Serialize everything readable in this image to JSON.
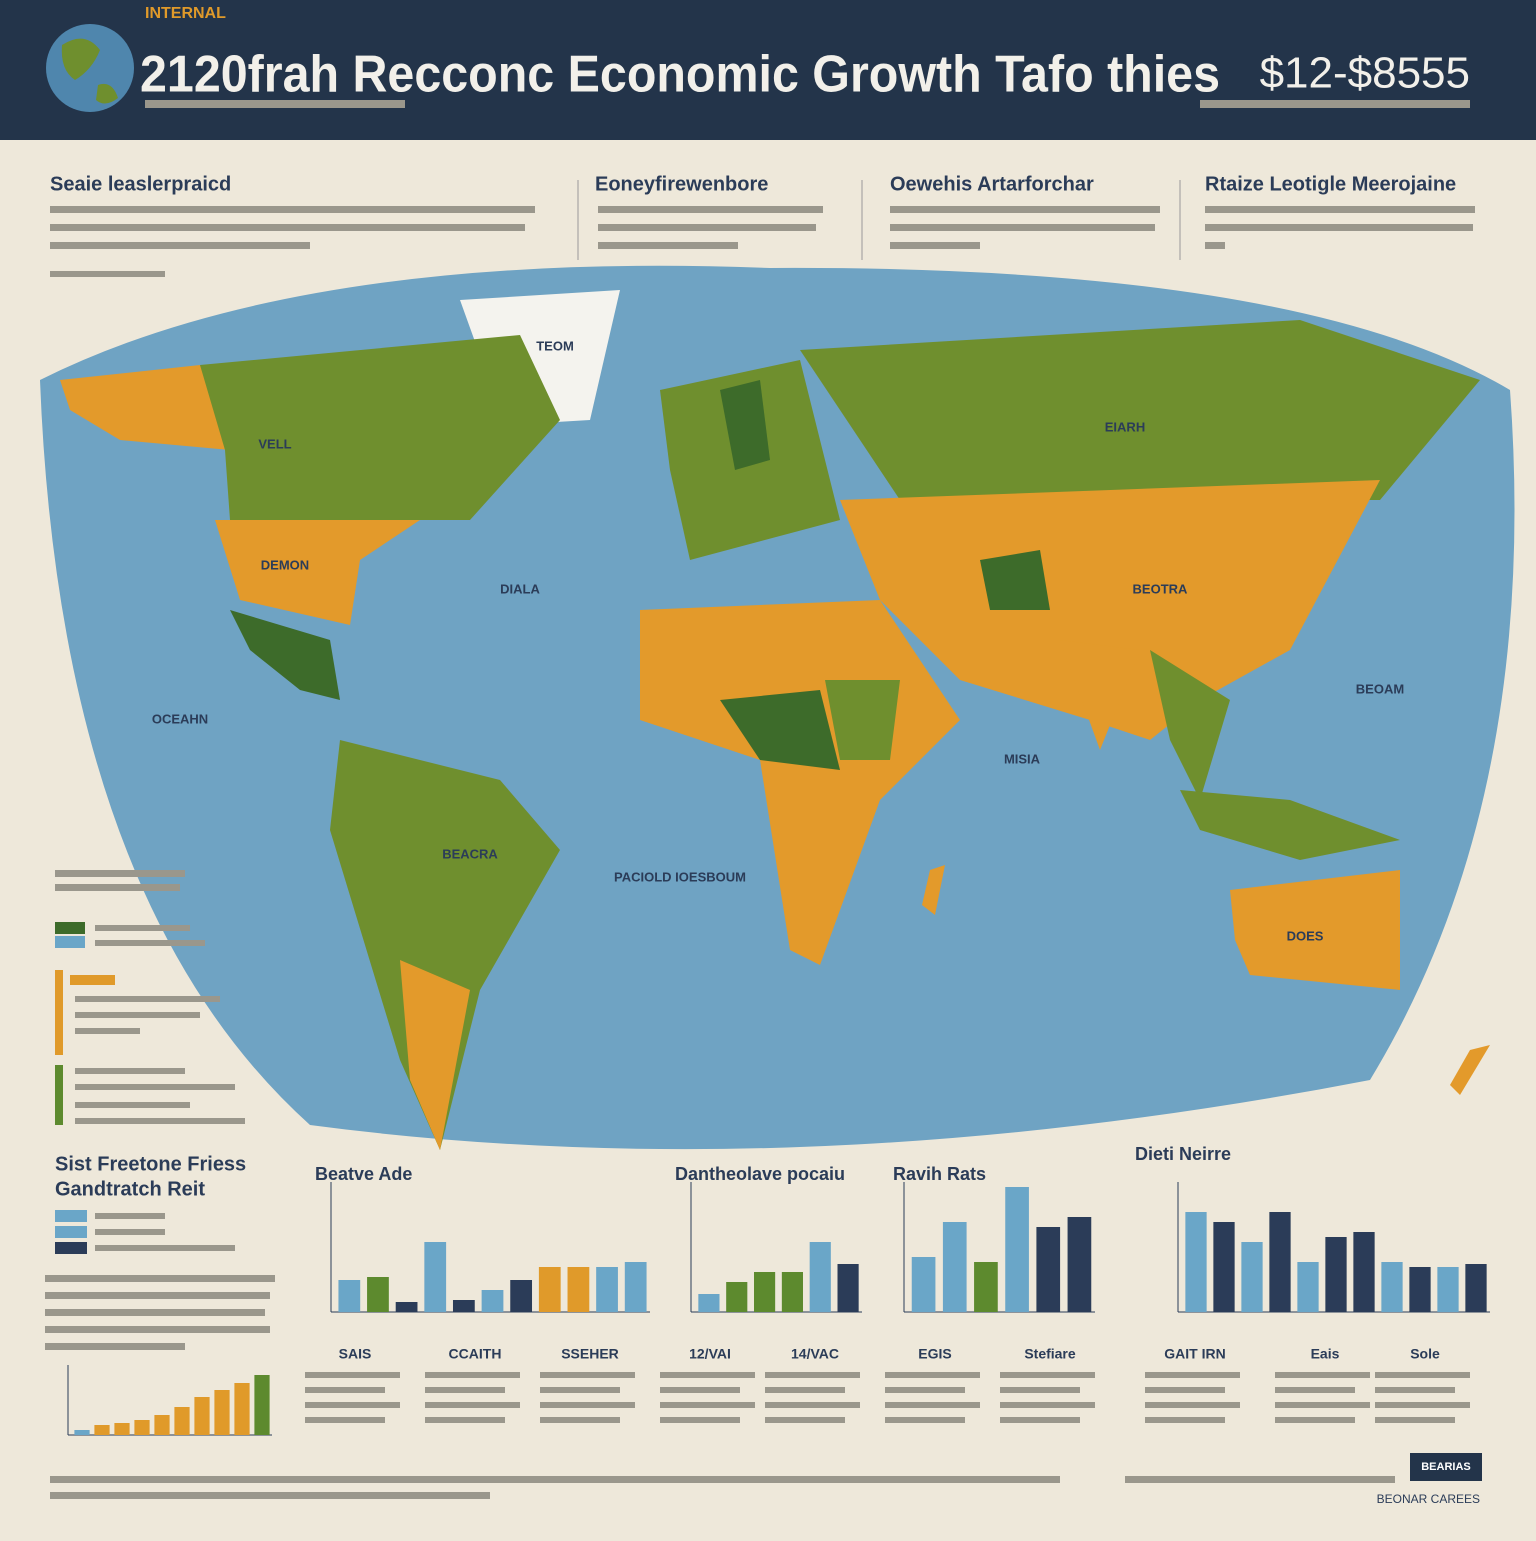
{
  "header": {
    "tag": "INTERNAL",
    "title": "2120frah Recconc Economic Growth Tafo thies",
    "figure": "$12-$8555"
  },
  "sections": [
    "Seaie leaslerpraicd",
    "Eoneyfirewenbore",
    "Oewehis Artarforchar",
    "Rtaize Leotigle Meerojaine"
  ],
  "map_labels": [
    "TEOM",
    "VELL",
    "DEMON",
    "DIALA",
    "BEOTRA",
    "EIARH",
    "OCEAHN",
    "BEOAM",
    "MISIA",
    "BEACRA",
    "PACIOLD IOESBOUM",
    "DOES"
  ],
  "left_panel": {
    "title": "Sist Freetone Friess",
    "subtitle": "Gandtratch Reit"
  },
  "charts": [
    {
      "title": "Beatve Ade",
      "ylim": [
        0,
        130
      ],
      "values": [
        32,
        35,
        10,
        70,
        12,
        22,
        32,
        45,
        45,
        45,
        50
      ],
      "colors": [
        "#6aa6c8",
        "#5d8a2e",
        "#2b3c58",
        "#6aa6c8",
        "#2b3c58",
        "#6aa6c8",
        "#2b3c58",
        "#e09a2a",
        "#e09a2a",
        "#6aa6c8",
        "#6aa6c8"
      ]
    },
    {
      "title": "Dantheolave pocaiu",
      "ylim": [
        0,
        130
      ],
      "values": [
        18,
        30,
        40,
        40,
        70,
        48
      ],
      "colors": [
        "#6aa6c8",
        "#5d8a2e",
        "#5d8a2e",
        "#5d8a2e",
        "#6aa6c8",
        "#2b3c58"
      ]
    },
    {
      "title": "Ravih Rats",
      "ylim": [
        0,
        130
      ],
      "values": [
        55,
        90,
        50,
        125,
        85,
        95
      ],
      "colors": [
        "#6aa6c8",
        "#6aa6c8",
        "#5d8a2e",
        "#6aa6c8",
        "#2b3c58",
        "#2b3c58"
      ]
    },
    {
      "title": "Dieti Neirre",
      "ylim": [
        0,
        130
      ],
      "values": [
        100,
        90,
        70,
        100,
        50,
        75,
        80,
        50,
        45,
        45,
        48
      ],
      "colors": [
        "#6aa6c8",
        "#2b3c58",
        "#6aa6c8",
        "#2b3c58",
        "#6aa6c8",
        "#2b3c58",
        "#2b3c58",
        "#6aa6c8",
        "#2b3c58",
        "#6aa6c8",
        "#2b3c58"
      ]
    },
    {
      "ylim": [
        0,
        70
      ],
      "values": [
        5,
        10,
        12,
        15,
        20,
        28,
        38,
        45,
        52,
        60
      ],
      "colors": [
        "#6aa6c8",
        "#e09a2a",
        "#e09a2a",
        "#e09a2a",
        "#e09a2a",
        "#e09a2a",
        "#e09a2a",
        "#e09a2a",
        "#e09a2a",
        "#5d8a2e"
      ]
    }
  ],
  "chart_labels": [
    "SAIS",
    "CCAITH",
    "SSEHER",
    "12/VAI",
    "14/VAC",
    "EGIS",
    "Stefiare",
    "GAIT IRN",
    "Eais",
    "Sole"
  ],
  "footer": {
    "button": "BEARIAS",
    "link": "BEONAR CAREES"
  }
}
